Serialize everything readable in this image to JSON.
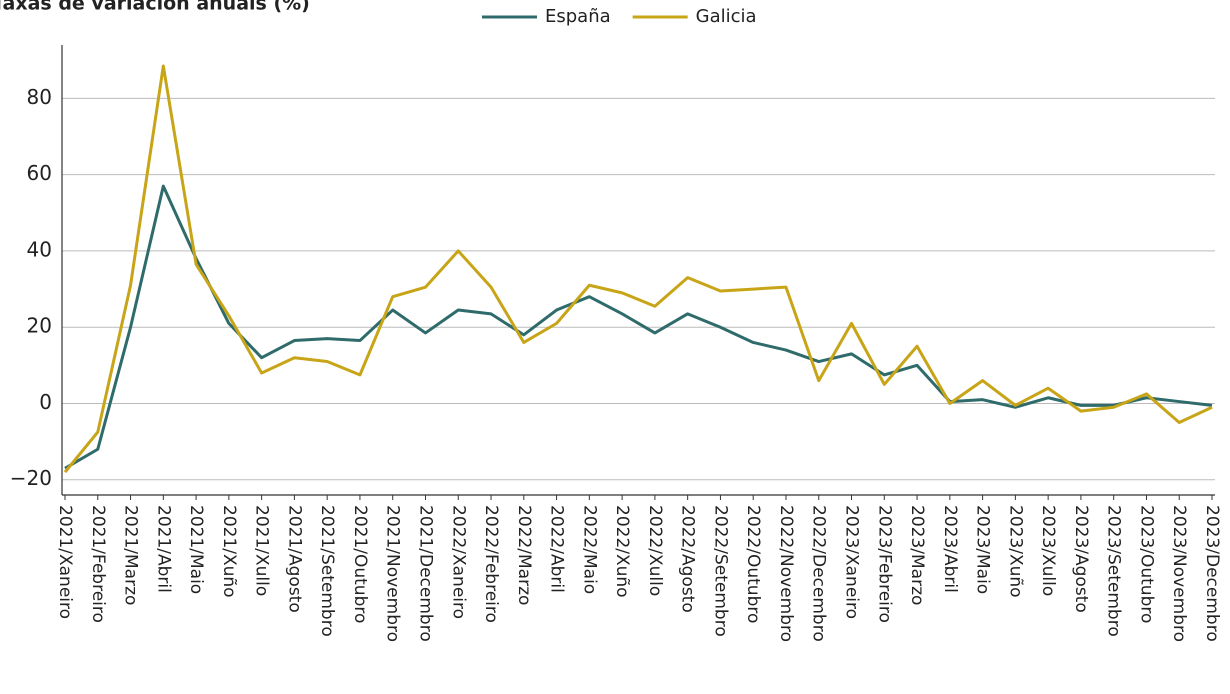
{
  "chart_data": {
    "type": "line",
    "title": "Taxas de variación anuais (%)",
    "categories": [
      "2021/Xaneiro",
      "2021/Febreiro",
      "2021/Marzo",
      "2021/Abril",
      "2021/Maio",
      "2021/Xuño",
      "2021/Xullo",
      "2021/Agosto",
      "2021/Setembro",
      "2021/Outubro",
      "2021/Novembro",
      "2021/Decembro",
      "2022/Xaneiro",
      "2022/Febreiro",
      "2022/Marzo",
      "2022/Abril",
      "2022/Maio",
      "2022/Xuño",
      "2022/Xullo",
      "2022/Agosto",
      "2022/Setembro",
      "2022/Outubro",
      "2022/Novembro",
      "2022/Decembro",
      "2023/Xaneiro",
      "2023/Febreiro",
      "2023/Marzo",
      "2023/Abril",
      "2023/Maio",
      "2023/Xuño",
      "2023/Xullo",
      "2023/Agosto",
      "2023/Setembro",
      "2023/Outubro",
      "2023/Novembro",
      "2023/Decembro"
    ],
    "series": [
      {
        "name": "España",
        "color": "#2e6b6a",
        "values": [
          -17,
          -12,
          20,
          57,
          38,
          21,
          12,
          16.5,
          17,
          16.5,
          24.5,
          18.5,
          24.5,
          23.5,
          18,
          24.5,
          28,
          23.5,
          18.5,
          23.5,
          20,
          16,
          14,
          11,
          13,
          7.5,
          10,
          0.5,
          1,
          -1,
          1.5,
          -0.5,
          -0.5,
          1.5,
          0.5,
          -0.5
        ]
      },
      {
        "name": "Galicia",
        "color": "#c8a417",
        "values": [
          -18,
          -7.5,
          31,
          88.5,
          36.5,
          23,
          8,
          12,
          11,
          7.5,
          28,
          30.5,
          40,
          30.5,
          16,
          21,
          31,
          29,
          25.5,
          33,
          29.5,
          30,
          30.5,
          6,
          21,
          5,
          15,
          0,
          6,
          -0.5,
          4,
          -2,
          -1,
          2.5,
          -5,
          -1
        ]
      }
    ],
    "ylim": [
      -24,
      94
    ],
    "yticks": [
      {
        "value": -20,
        "label": "−20"
      },
      0,
      20,
      40,
      60,
      80
    ],
    "grid": true,
    "legend": "top"
  }
}
